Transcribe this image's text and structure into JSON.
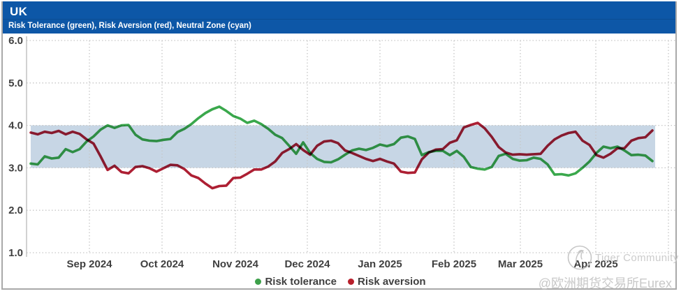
{
  "window": {
    "title": "UK",
    "subtitle": "Risk Tolerance (green), Risk Aversion (red), Neutral Zone (cyan)"
  },
  "colors": {
    "header_bg": "#0d57a7",
    "header_divider": "rgba(0,0,0,0.12)",
    "neutral_band": "#c7d6e5",
    "grid": "#c6c6c6",
    "axis_line": "#b5b5b5",
    "axis_text": "#3f3f3f",
    "risk_tolerance_line": "#3aa84c",
    "risk_aversion_line": "#ad1f33",
    "legend_green_dot": "#3da04a",
    "legend_red_dot": "#b71f2b",
    "watermark": "#c9c9c9",
    "figure_border": "#a9a9a9"
  },
  "legend": {
    "items": [
      {
        "label": "Risk tolerance",
        "color": "#3da04a"
      },
      {
        "label": "Risk aversion",
        "color": "#b71f2b"
      }
    ]
  },
  "watermark": {
    "brand": "Tiger Community",
    "handle": "@欧洲期货交易所Eurex",
    "logo": "tiger-circle-logo"
  },
  "chart_data": {
    "type": "line",
    "title": "UK",
    "subtitle": "Risk Tolerance (green), Risk Aversion (red), Neutral Zone (cyan)",
    "ylim": [
      1.0,
      6.0
    ],
    "y_ticks": [
      6.0,
      5.0,
      4.0,
      3.0,
      2.0,
      1.0
    ],
    "x_tick_labels": [
      "Sep 2024",
      "Oct 2024",
      "Nov 2024",
      "Dec 2024",
      "Jan 2025",
      "Feb 2025",
      "Mar 2025",
      "Apr 2025"
    ],
    "x_tick_indices": [
      8.4,
      18.8,
      29.3,
      39.6,
      50.0,
      60.6,
      70.1,
      80.9
    ],
    "x_grid_extra_index": 91.3,
    "x_range_note": "daily series from ~07 Aug 2024 to ~25 Apr 2025, sampled at ~3-day intervals (90 points)",
    "grid": "dotted",
    "legend_position": "bottom-center",
    "neutral_zone": {
      "min": 3.0,
      "max": 4.0,
      "label": "Neutral Zone (cyan)"
    },
    "series": [
      {
        "name": "Risk tolerance",
        "color": "#3aa84c",
        "values": [
          3.1,
          3.08,
          3.27,
          3.22,
          3.24,
          3.44,
          3.37,
          3.44,
          3.62,
          3.74,
          3.9,
          4.0,
          3.94,
          4.0,
          4.01,
          3.78,
          3.67,
          3.64,
          3.63,
          3.66,
          3.68,
          3.84,
          3.92,
          4.03,
          4.17,
          4.29,
          4.38,
          4.44,
          4.34,
          4.22,
          4.16,
          4.06,
          4.11,
          4.03,
          3.92,
          3.78,
          3.7,
          3.52,
          3.33,
          3.6,
          3.35,
          3.21,
          3.14,
          3.13,
          3.2,
          3.31,
          3.41,
          3.45,
          3.42,
          3.47,
          3.55,
          3.51,
          3.56,
          3.71,
          3.74,
          3.68,
          3.3,
          3.37,
          3.4,
          3.4,
          3.3,
          3.4,
          3.26,
          3.02,
          2.98,
          2.96,
          3.02,
          3.28,
          3.33,
          3.21,
          3.17,
          3.18,
          3.24,
          3.21,
          3.08,
          2.84,
          2.85,
          2.82,
          2.87,
          3.0,
          3.15,
          3.35,
          3.5,
          3.46,
          3.5,
          3.41,
          3.3,
          3.31,
          3.29,
          3.16
        ]
      },
      {
        "name": "Risk aversion",
        "color": "#ad1f33",
        "values": [
          3.83,
          3.79,
          3.85,
          3.82,
          3.87,
          3.79,
          3.85,
          3.8,
          3.67,
          3.57,
          3.27,
          2.95,
          3.05,
          2.9,
          2.87,
          3.02,
          3.04,
          2.99,
          2.91,
          2.99,
          3.07,
          3.06,
          2.97,
          2.82,
          2.76,
          2.63,
          2.52,
          2.57,
          2.58,
          2.76,
          2.77,
          2.86,
          2.96,
          2.96,
          3.03,
          3.15,
          3.35,
          3.44,
          3.56,
          3.42,
          3.31,
          3.52,
          3.62,
          3.64,
          3.58,
          3.41,
          3.35,
          3.28,
          3.21,
          3.16,
          3.21,
          3.15,
          3.1,
          2.91,
          2.88,
          2.89,
          3.2,
          3.36,
          3.43,
          3.44,
          3.59,
          3.65,
          3.95,
          4.01,
          4.06,
          3.93,
          3.73,
          3.49,
          3.36,
          3.31,
          3.32,
          3.31,
          3.32,
          3.33,
          3.52,
          3.67,
          3.76,
          3.82,
          3.85,
          3.64,
          3.54,
          3.3,
          3.24,
          3.33,
          3.46,
          3.46,
          3.64,
          3.7,
          3.72,
          3.88
        ]
      }
    ]
  }
}
